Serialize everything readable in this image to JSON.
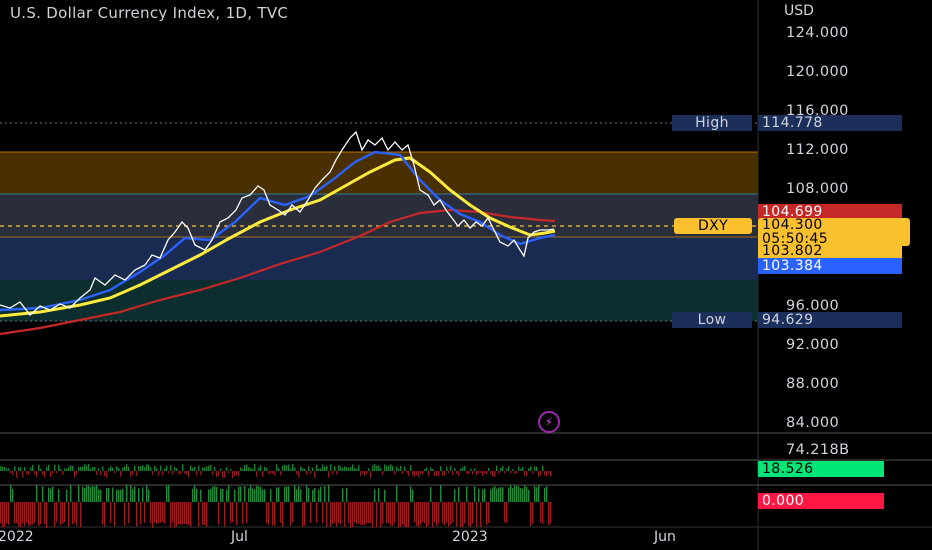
{
  "header": {
    "title": "U.S. Dollar Currency Index, 1D, TVC",
    "currency": "USD"
  },
  "price_axis": {
    "labels": [
      "124.000",
      "120.000",
      "116.000",
      "112.000",
      "108.000",
      "96.000",
      "92.000",
      "88.000",
      "84.000"
    ]
  },
  "markers": {
    "high": {
      "name": "High",
      "value": "114.778"
    },
    "low": {
      "name": "Low",
      "value": "94.629"
    },
    "symbol": {
      "name": "DXY",
      "price": "104.300",
      "countdown": "05:50:45"
    },
    "ma_red": "104.699",
    "ma_yellow": "103.802",
    "ma_blue": "103.384"
  },
  "volume_pane": {
    "value": "74.218B",
    "indicator": "18.526"
  },
  "bottom_pane": {
    "value": "0.000"
  },
  "time_axis": {
    "labels": [
      "2022",
      "Jul",
      "2023",
      "Jun"
    ]
  },
  "icons": {
    "flash": "lightning-icon"
  },
  "colors": {
    "background": "#000000",
    "price_line": "#ffffff",
    "ma_yellow": "#ffeb3b",
    "ma_blue": "#2962ff",
    "ma_red": "#c62828",
    "tag_red": "#d32f2f",
    "tag_yellow": "#fbc02d",
    "tag_blue": "#2962ff",
    "tag_navy": "#1b2f5a",
    "tag_green": "#00e676",
    "tag_bright_red": "#ff1744",
    "band_brown": "#4a2f00",
    "band_navy": "#1a2b52",
    "band_teal": "#0d2e2e"
  }
}
